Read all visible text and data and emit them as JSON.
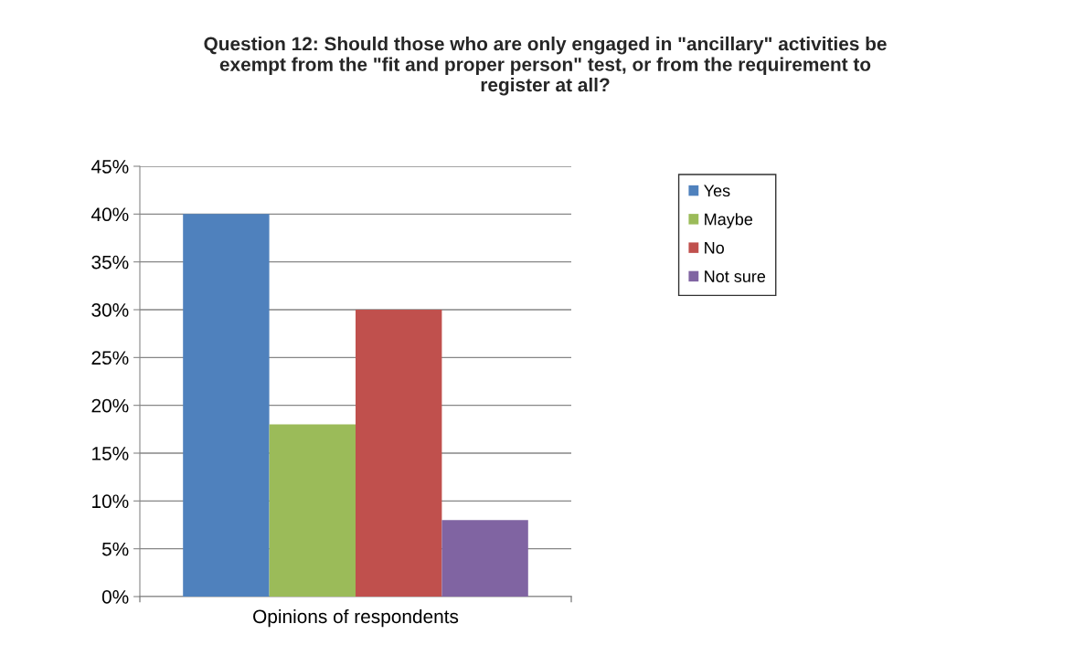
{
  "chart_data": {
    "type": "bar",
    "title": "Question 12: Should those who are only engaged in \"ancillary\" activities be\nexempt from the \"fit and proper person\" test, or from the requirement to\nregister at all?",
    "categories": [
      "Opinions of respondents"
    ],
    "series": [
      {
        "name": "Yes",
        "color": "#4f81bd",
        "values": [
          40
        ]
      },
      {
        "name": "Maybe",
        "color": "#9bbb59",
        "values": [
          18
        ]
      },
      {
        "name": "No",
        "color": "#c0504d",
        "values": [
          30
        ]
      },
      {
        "name": "Not sure",
        "color": "#8064a2",
        "values": [
          8
        ]
      }
    ],
    "ylim": [
      0,
      45
    ],
    "yticks": [
      {
        "value": 0,
        "label": "0%"
      },
      {
        "value": 5,
        "label": "5%"
      },
      {
        "value": 10,
        "label": "10%"
      },
      {
        "value": 15,
        "label": "15%"
      },
      {
        "value": 20,
        "label": "20%"
      },
      {
        "value": 25,
        "label": "25%"
      },
      {
        "value": 30,
        "label": "30%"
      },
      {
        "value": 35,
        "label": "35%"
      },
      {
        "value": 40,
        "label": "40%"
      },
      {
        "value": 45,
        "label": "45%"
      }
    ],
    "grid": "y",
    "legend": "top right"
  }
}
